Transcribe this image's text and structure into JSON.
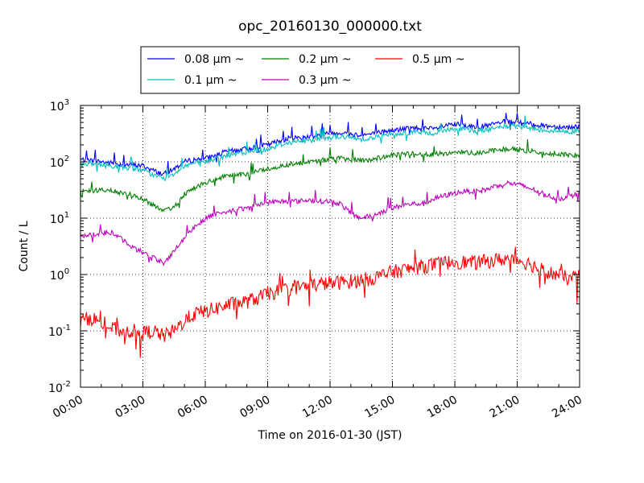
{
  "chart_data": {
    "type": "line",
    "title": "opc_20160130_000000.txt",
    "xlabel": "Time on 2016-01-30 (JST)",
    "ylabel": "Count / L",
    "y_scale": "log",
    "ylim": [
      0.01,
      1000
    ],
    "xlim": [
      "00:00",
      "24:00"
    ],
    "grid": true,
    "legend_position": "top",
    "x_ticks": [
      "00:00",
      "03:00",
      "06:00",
      "09:00",
      "12:00",
      "15:00",
      "18:00",
      "21:00",
      "24:00"
    ],
    "y_ticks": [
      {
        "base": "10",
        "exp": "-2"
      },
      {
        "base": "10",
        "exp": "-1"
      },
      {
        "base": "10",
        "exp": "0"
      },
      {
        "base": "10",
        "exp": "1"
      },
      {
        "base": "10",
        "exp": "2"
      },
      {
        "base": "10",
        "exp": "3"
      }
    ],
    "x": [
      "00:00",
      "00:30",
      "01:00",
      "01:30",
      "02:00",
      "02:30",
      "03:00",
      "03:30",
      "04:00",
      "04:30",
      "05:00",
      "05:30",
      "06:00",
      "06:30",
      "07:00",
      "07:30",
      "08:00",
      "08:30",
      "09:00",
      "09:30",
      "10:00",
      "10:30",
      "11:00",
      "11:30",
      "12:00",
      "12:30",
      "13:00",
      "13:30",
      "14:00",
      "14:30",
      "15:00",
      "15:30",
      "16:00",
      "16:30",
      "17:00",
      "17:30",
      "18:00",
      "18:30",
      "19:00",
      "19:30",
      "20:00",
      "20:30",
      "21:00",
      "21:30",
      "22:00",
      "22:30",
      "23:00",
      "23:30",
      "24:00"
    ],
    "series": [
      {
        "name": "0.08 μm ~",
        "color": "#0000ff",
        "values": [
          110,
          105,
          100,
          95,
          90,
          88,
          85,
          70,
          60,
          75,
          100,
          110,
          115,
          130,
          150,
          160,
          170,
          185,
          200,
          230,
          260,
          270,
          280,
          300,
          320,
          330,
          310,
          300,
          310,
          340,
          360,
          380,
          400,
          390,
          380,
          430,
          460,
          440,
          420,
          430,
          480,
          520,
          500,
          470,
          450,
          430,
          420,
          410,
          430
        ]
      },
      {
        "name": "0.1 μm ~",
        "color": "#00c0c0",
        "values": [
          95,
          92,
          88,
          85,
          80,
          76,
          70,
          58,
          50,
          62,
          85,
          95,
          100,
          112,
          128,
          138,
          145,
          158,
          170,
          195,
          220,
          230,
          240,
          255,
          270,
          280,
          265,
          255,
          265,
          290,
          305,
          320,
          340,
          330,
          320,
          360,
          390,
          375,
          360,
          365,
          400,
          430,
          420,
          395,
          380,
          360,
          350,
          345,
          360
        ]
      },
      {
        "name": "0.2 μm ~",
        "color": "#008000",
        "values": [
          30,
          30,
          32,
          30,
          28,
          26,
          22,
          17,
          13,
          16,
          27,
          35,
          42,
          48,
          55,
          58,
          60,
          68,
          75,
          82,
          90,
          95,
          100,
          105,
          110,
          115,
          110,
          105,
          110,
          120,
          130,
          135,
          140,
          138,
          135,
          140,
          150,
          148,
          145,
          150,
          160,
          170,
          165,
          155,
          150,
          140,
          135,
          130,
          135
        ]
      },
      {
        "name": "0.3 μm ~",
        "color": "#c000c0",
        "values": [
          5,
          5,
          5.5,
          5.5,
          4.2,
          3,
          2.5,
          2,
          1.6,
          2.6,
          4.5,
          7,
          10,
          12,
          13,
          14,
          15,
          17,
          19,
          20,
          20,
          20,
          21,
          20,
          20,
          18,
          12,
          10,
          11,
          13,
          15,
          17,
          18,
          18,
          22,
          25,
          28,
          30,
          30,
          32,
          38,
          42,
          40,
          35,
          30,
          25,
          22,
          24,
          28
        ]
      },
      {
        "name": "0.5 μm ~",
        "color": "#ff0000",
        "values": [
          0.15,
          0.17,
          0.14,
          0.11,
          0.1,
          0.1,
          0.09,
          0.1,
          0.08,
          0.1,
          0.15,
          0.2,
          0.22,
          0.25,
          0.28,
          0.31,
          0.33,
          0.38,
          0.45,
          0.5,
          0.55,
          0.6,
          0.63,
          0.68,
          0.7,
          0.72,
          0.75,
          0.8,
          0.85,
          0.95,
          1.1,
          1.2,
          1.3,
          1.4,
          1.5,
          1.6,
          1.7,
          1.65,
          1.6,
          1.7,
          1.8,
          1.9,
          1.85,
          1.6,
          1.3,
          1.1,
          0.95,
          0.85,
          0.9
        ]
      }
    ]
  }
}
